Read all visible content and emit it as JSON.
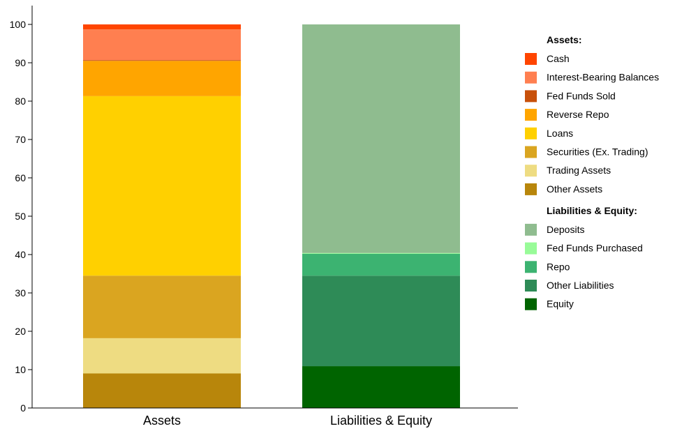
{
  "chart_data": {
    "type": "bar",
    "stacked": true,
    "categories": [
      "Assets",
      "Liabilities & Equity"
    ],
    "ylim": [
      0,
      100
    ],
    "yticks": [
      0,
      10,
      20,
      30,
      40,
      50,
      60,
      70,
      80,
      90,
      100
    ],
    "grid": false,
    "legend_placement": "right",
    "legend_groups": [
      {
        "heading": "Assets:",
        "items": [
          0,
          1,
          2,
          3,
          4,
          5,
          6,
          7
        ]
      },
      {
        "heading": "Liabilities & Equity:",
        "items": [
          8,
          9,
          10,
          11,
          12
        ]
      }
    ],
    "series": [
      {
        "name": "Cash",
        "color": "#FF4500",
        "values": [
          1.3,
          0
        ]
      },
      {
        "name": "Interest-Bearing Balances",
        "color": "#FF7F50",
        "values": [
          8.0,
          0
        ]
      },
      {
        "name": "Fed Funds Sold",
        "color": "#C8500A",
        "values": [
          0.2,
          0
        ]
      },
      {
        "name": "Reverse Repo",
        "color": "#FFA500",
        "values": [
          9.2,
          0
        ]
      },
      {
        "name": "Loans",
        "color": "#FFD000",
        "values": [
          46.8,
          0
        ]
      },
      {
        "name": "Securities (Ex. Trading)",
        "color": "#DAA520",
        "values": [
          16.3,
          0
        ]
      },
      {
        "name": "Trading Assets",
        "color": "#EEDC82",
        "values": [
          9.2,
          0
        ]
      },
      {
        "name": "Other Assets",
        "color": "#B8860B",
        "values": [
          9.0,
          0
        ]
      },
      {
        "name": "Deposits",
        "color": "#8FBC8F",
        "values": [
          0,
          59.6
        ]
      },
      {
        "name": "Fed Funds Purchased",
        "color": "#98FB98",
        "values": [
          0,
          0.2
        ]
      },
      {
        "name": "Repo",
        "color": "#3CB371",
        "values": [
          0,
          5.7
        ]
      },
      {
        "name": "Other Liabilities",
        "color": "#2E8B57",
        "values": [
          0,
          23.6
        ]
      },
      {
        "name": "Equity",
        "color": "#006400",
        "values": [
          0,
          10.9
        ]
      }
    ]
  }
}
